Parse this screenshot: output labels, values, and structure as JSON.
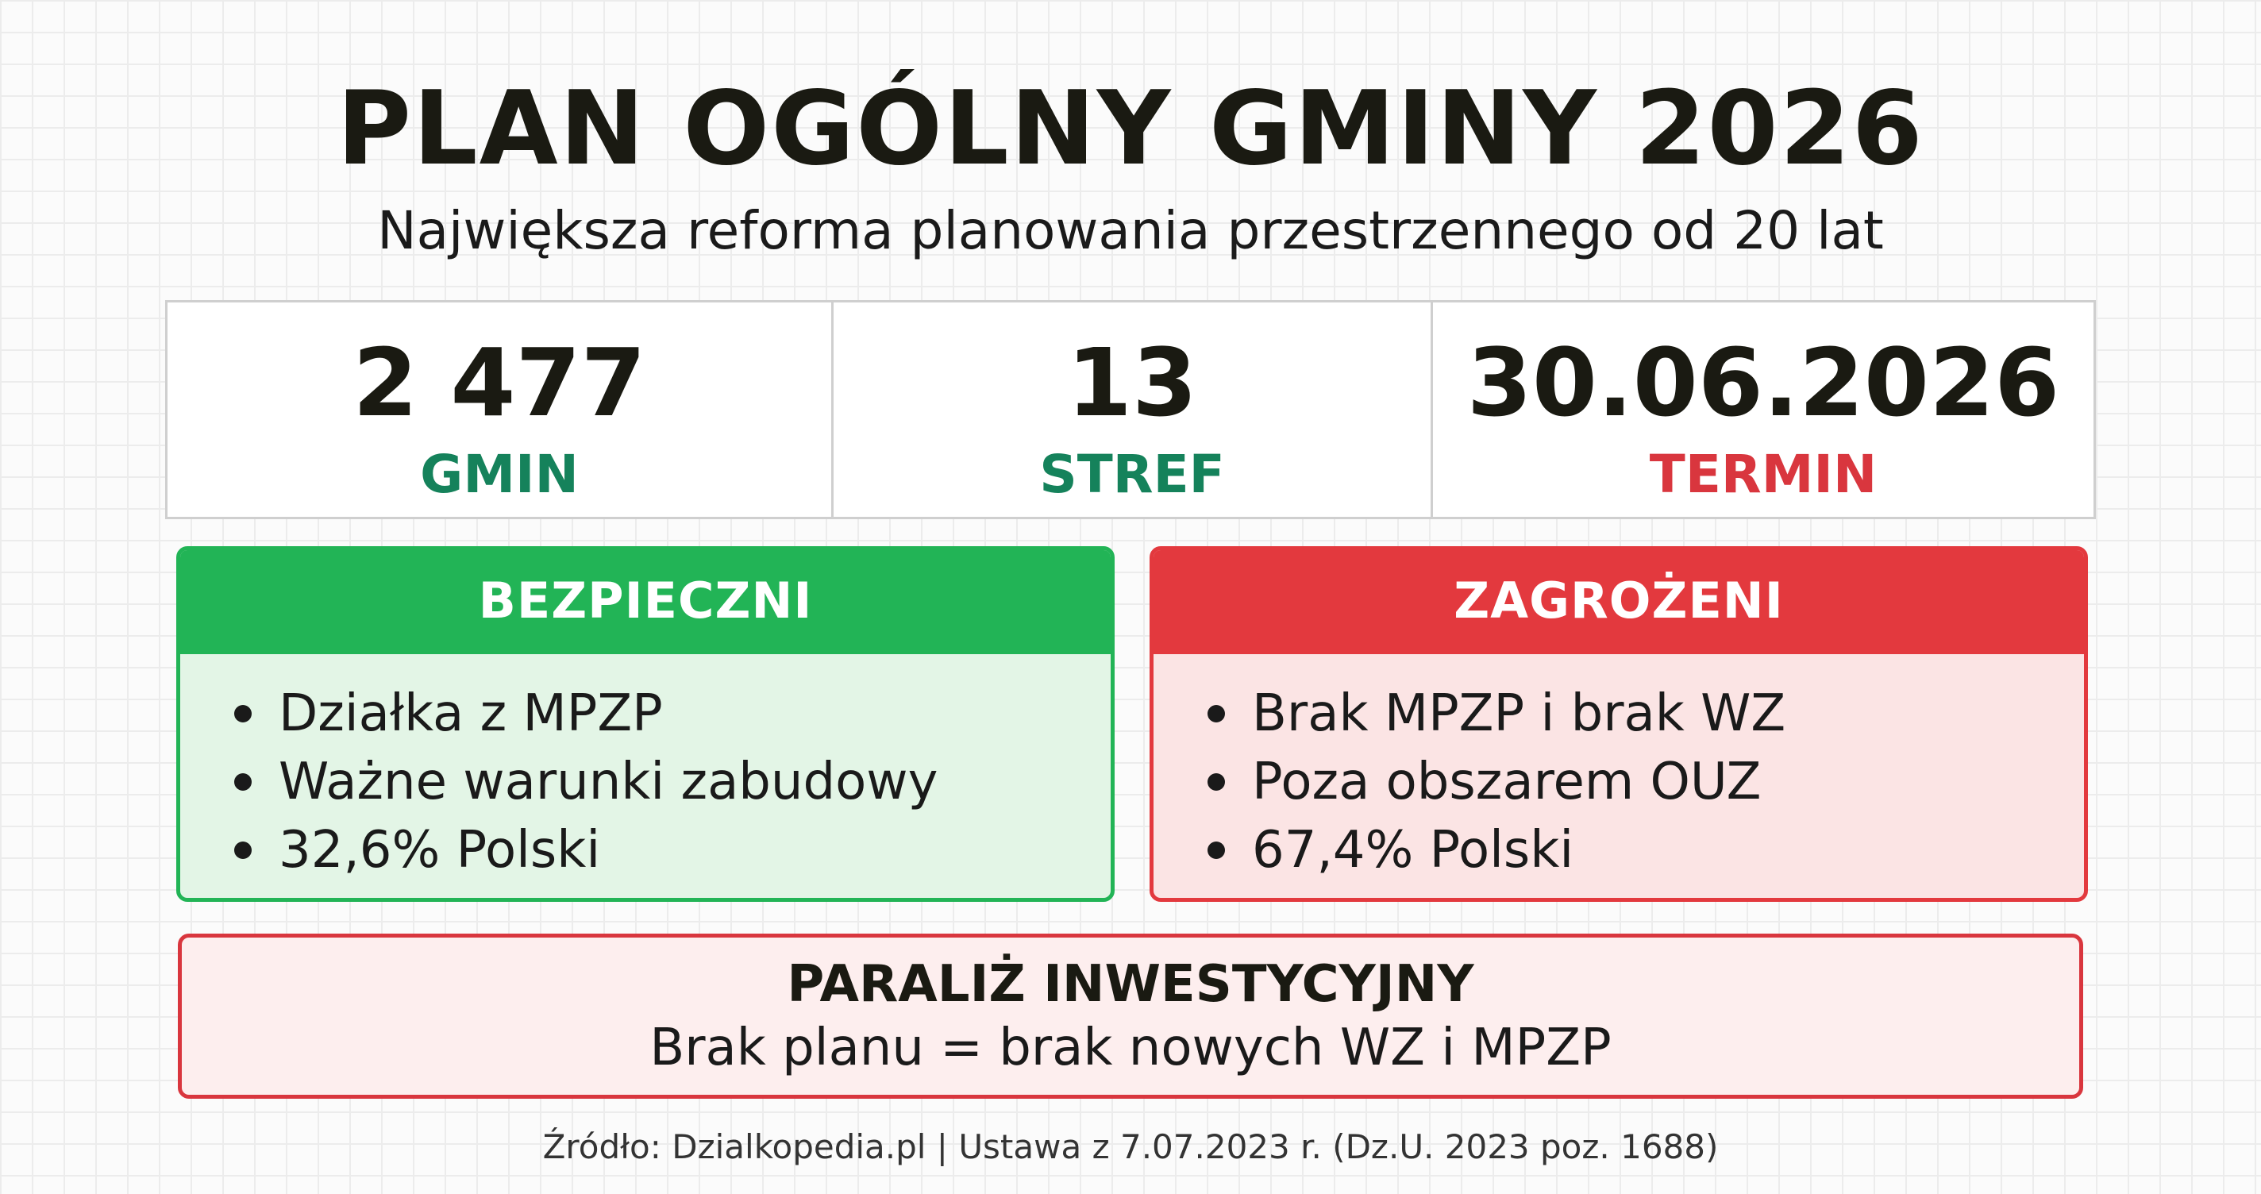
{
  "header": {
    "title": "PLAN OGÓLNY GMINY 2026",
    "subtitle": "Największa reforma planowania przestrzennego od 20 lat"
  },
  "stats": [
    {
      "value": "2 477",
      "label": "GMIN",
      "color": "#15825b"
    },
    {
      "value": "13",
      "label": "STREF",
      "color": "#15825b"
    },
    {
      "value": "30.06.2026",
      "label": "TERMIN",
      "color": "#d9363e"
    }
  ],
  "safe": {
    "title": "BEZPIECZNI",
    "items": [
      "Działka z MPZP",
      "Ważne warunki zabudowy",
      "32,6% Polski"
    ],
    "accent": "#22b456",
    "background": "#e3f5e6"
  },
  "danger": {
    "title": "ZAGROŻENI",
    "items": [
      "Brak MPZP i brak WZ",
      "Poza obszarem OUZ",
      "67,4% Polski"
    ],
    "accent": "#e3393e",
    "background": "#fbe4e4"
  },
  "paralysis": {
    "title": "PARALIŻ INWESTYCYJNY",
    "text": "Brak planu = brak nowych WZ i MPZP"
  },
  "footer": {
    "source": "Źródło: Dzialkopedia.pl | Ustawa z 7.07.2023 r. (Dz.U. 2023 poz. 1688)"
  }
}
